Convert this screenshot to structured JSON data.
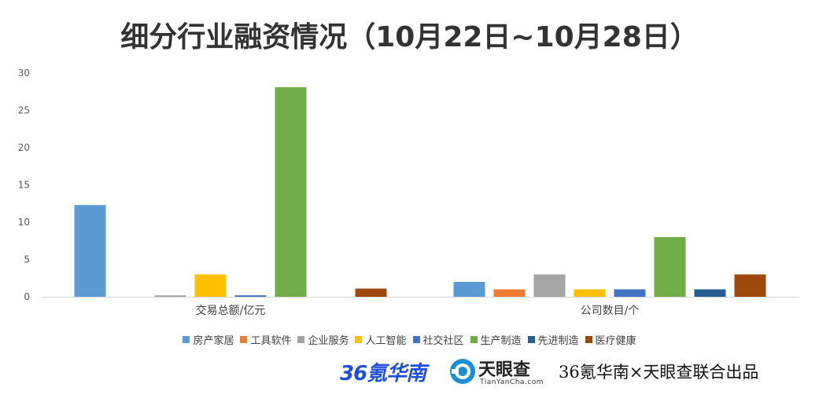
{
  "title": "细分行业融资情况（10月22日~10月28日）",
  "chart_data": {
    "type": "bar",
    "categories": [
      "交易总额/亿元",
      "公司数目/个"
    ],
    "ylim": [
      0,
      30
    ],
    "yticks": [
      0,
      5,
      10,
      15,
      20,
      25,
      30
    ],
    "grid": false,
    "legend_position": "bottom",
    "series": [
      {
        "name": "房产家居",
        "color": "#5b9bd5",
        "values": [
          12.3,
          2
        ]
      },
      {
        "name": "工具软件",
        "color": "#ed7d31",
        "values": [
          0,
          1
        ]
      },
      {
        "name": "企业服务",
        "color": "#a5a5a5",
        "values": [
          0.2,
          3
        ]
      },
      {
        "name": "人工智能",
        "color": "#ffc000",
        "values": [
          3,
          1
        ]
      },
      {
        "name": "社交社区",
        "color": "#4472c4",
        "values": [
          0.2,
          1
        ]
      },
      {
        "name": "生产制造",
        "color": "#70ad47",
        "values": [
          28.1,
          8
        ]
      },
      {
        "name": "先进制造",
        "color": "#255e91",
        "values": [
          0,
          1
        ]
      },
      {
        "name": "医疗健康",
        "color": "#9e480e",
        "values": [
          1.1,
          3
        ]
      }
    ]
  },
  "footer": {
    "logo_36kr": "36氪华南",
    "logo_tyc": "天眼查",
    "logo_tyc_sub": "TianYanCha.com",
    "credit": "36氪华南×天眼查联合出品"
  }
}
